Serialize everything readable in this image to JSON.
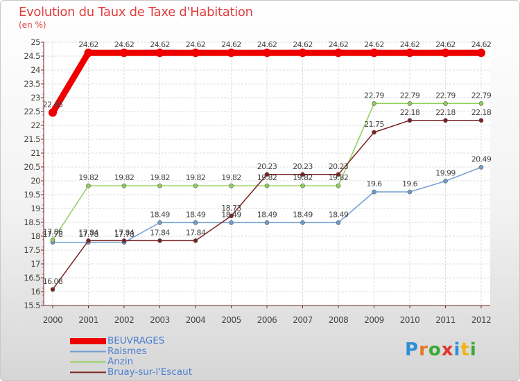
{
  "chart_data": {
    "type": "line",
    "title": "Evolution du Taux de Taxe d'Habitation",
    "ylabel": "(en %)",
    "x": [
      "2000",
      "2001",
      "2002",
      "2003",
      "2004",
      "2005",
      "2006",
      "2007",
      "2008",
      "2009",
      "2010",
      "2011",
      "2012"
    ],
    "ylim": [
      15.5,
      25
    ],
    "yticks": [
      "15.5",
      "16",
      "16.5",
      "17",
      "17.5",
      "18",
      "18.5",
      "19",
      "19.5",
      "20",
      "20.5",
      "21",
      "21.5",
      "22",
      "22.5",
      "23",
      "23.5",
      "24",
      "24.5",
      "25"
    ],
    "grid": true,
    "legend_position": "bottom-left",
    "series": [
      {
        "name": "BEUVRAGES",
        "color": "#ee0000",
        "values": [
          22.46,
          24.62,
          24.62,
          24.62,
          24.62,
          24.62,
          24.62,
          24.62,
          24.62,
          24.62,
          24.62,
          24.62,
          24.62
        ],
        "labels": [
          "22.46",
          "24.62",
          "24.62",
          "24.62",
          "24.62",
          "24.62",
          "24.62",
          "24.62",
          "24.62",
          "24.62",
          "24.62",
          "24.62",
          "24.62"
        ]
      },
      {
        "name": "Raismes",
        "color": "#6f9fcf",
        "values": [
          17.78,
          17.78,
          17.78,
          18.49,
          18.49,
          18.49,
          18.49,
          18.49,
          18.49,
          19.6,
          19.6,
          19.99,
          20.49
        ],
        "labels": [
          "17.78",
          "17.78",
          "17.78",
          "18.49",
          "18.49",
          "18.49",
          "18.49",
          "18.49",
          "18.49",
          "19.6",
          "19.6",
          "19.99",
          "20.49"
        ]
      },
      {
        "name": "Anzin",
        "color": "#8fd05a",
        "values": [
          17.86,
          19.82,
          19.82,
          19.82,
          19.82,
          19.82,
          19.82,
          19.82,
          19.82,
          22.79,
          22.79,
          22.79,
          22.79
        ],
        "labels": [
          "17.86",
          "19.82",
          "19.82",
          "19.82",
          "19.82",
          "19.82",
          "19.82",
          "19.82",
          "19.82",
          "22.79",
          "22.79",
          "22.79",
          "22.79"
        ]
      },
      {
        "name": "Bruay-sur-l'Escaut",
        "color": "#7a2222",
        "values": [
          16.08,
          17.84,
          17.84,
          17.84,
          17.84,
          18.73,
          20.23,
          20.23,
          20.23,
          21.75,
          22.18,
          22.18,
          22.18
        ],
        "labels": [
          "16.08",
          "17.84",
          "17.84",
          "17.84",
          "17.84",
          "18.73",
          "20.23",
          "20.23",
          "20.23",
          "21.75",
          "22.18",
          "22.18",
          "22.18"
        ]
      }
    ]
  },
  "logo": {
    "letters": [
      "P",
      "r",
      "o",
      "x",
      "i",
      "t",
      "i"
    ],
    "colors": [
      "#2d8fd6",
      "#e87722",
      "#3aaa35",
      "#e3342f",
      "#2d8fd6",
      "#f2b21a",
      "#3aaa35"
    ]
  }
}
